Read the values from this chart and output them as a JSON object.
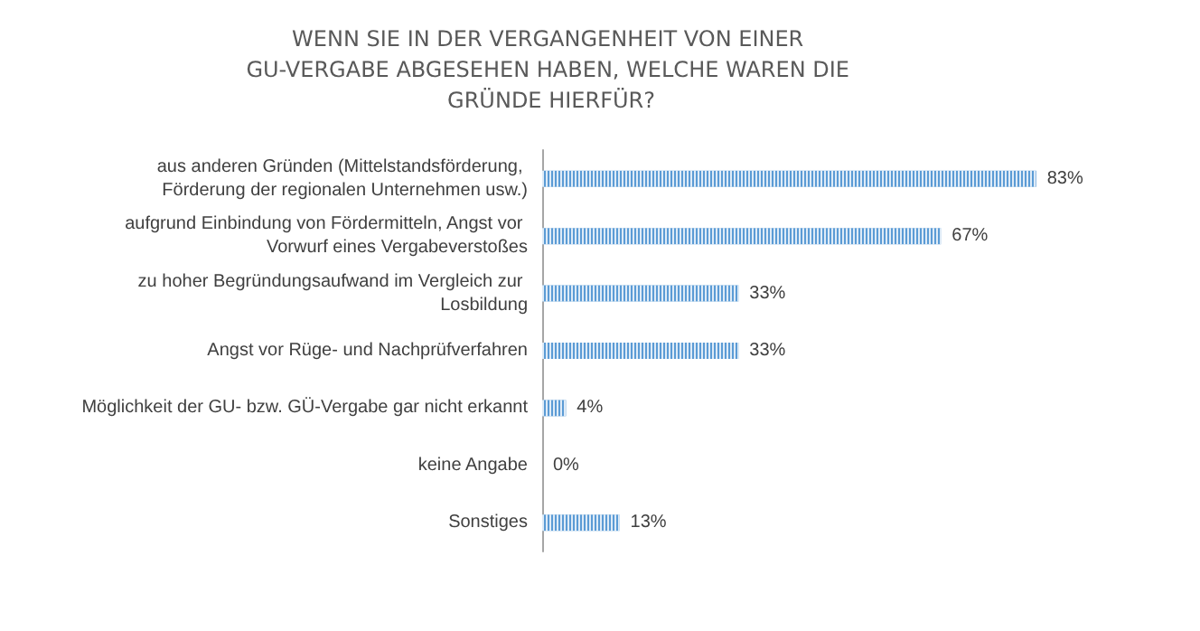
{
  "chart_data": {
    "type": "bar",
    "orientation": "horizontal",
    "title": "WENN SIE IN DER VERGANGENHEIT VON EINER GU-VERGABE ABGESEHEN HABEN, WELCHE WAREN DIE GRÜNDE HIERFÜR?",
    "categories": [
      "aus anderen Gründen (Mittelstandsförderung, Förderung der regionalen Unternehmen usw.)",
      "aufgrund Einbindung von Fördermitteln, Angst vor Vorwurf eines Vergabeverstoßes",
      "zu hoher Begründungsaufwand im Vergleich zur Losbildung",
      "Angst vor Rüge- und Nachprüfverfahren",
      "Möglichkeit der GU- bzw. GÜ-Vergabe gar nicht erkannt",
      "keine Angabe",
      "Sonstiges"
    ],
    "values": [
      83,
      67,
      33,
      33,
      4,
      0,
      13
    ],
    "value_labels": [
      "83%",
      "67%",
      "33%",
      "33%",
      "4%",
      "0%",
      "13%"
    ],
    "color": "#5b9bd5"
  }
}
